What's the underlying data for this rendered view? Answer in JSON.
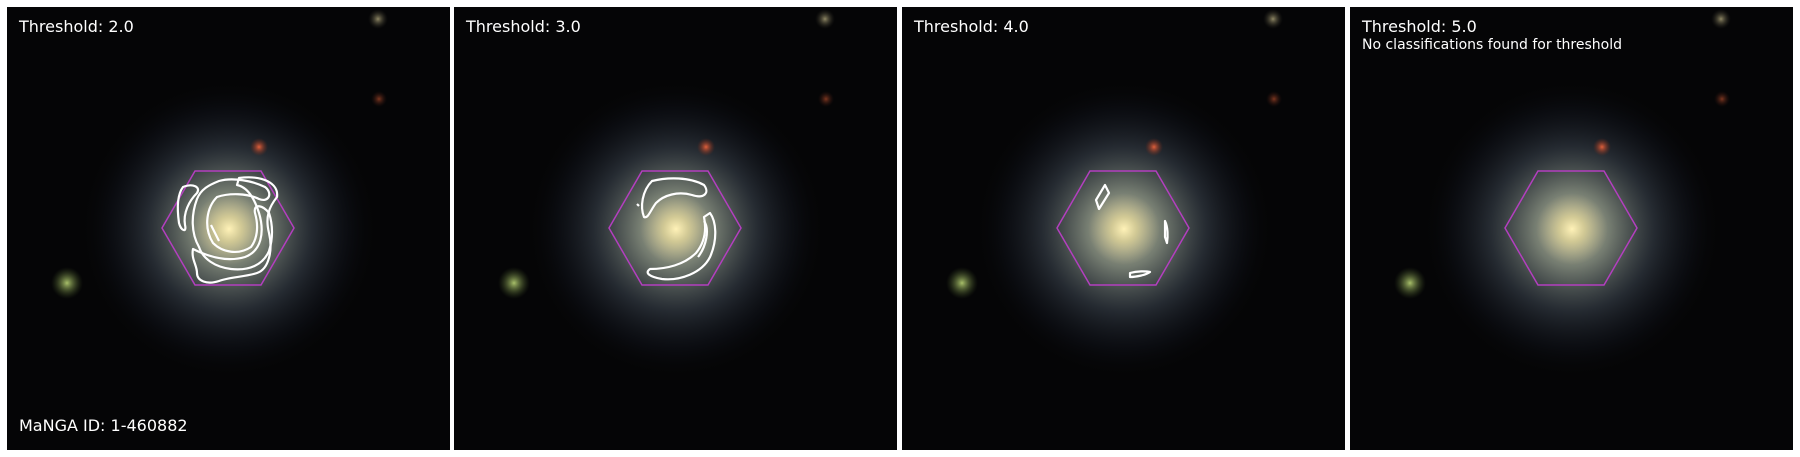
{
  "colors": {
    "background": "#050506",
    "contour": "#ffffff",
    "ifu_hexagon": "#b33fbf",
    "galaxy_core": "#e8dc9a",
    "galaxy_disk": "#8a9a8c",
    "foreground_star_red": "#c84a2e",
    "foreground_star_green": "#8ca85a"
  },
  "icons": {
    "ifu_footprint": "hexagon-outline",
    "contours": "closed-contour-lines"
  },
  "panels": [
    {
      "threshold_label": "Threshold: 2.0",
      "note": "",
      "id_label": "MaNGA ID: 1-460882"
    },
    {
      "threshold_label": "Threshold: 3.0",
      "note": "",
      "id_label": ""
    },
    {
      "threshold_label": "Threshold: 4.0",
      "note": "",
      "id_label": ""
    },
    {
      "threshold_label": "Threshold: 5.0",
      "note": "No classifications found for threshold",
      "id_label": ""
    }
  ]
}
